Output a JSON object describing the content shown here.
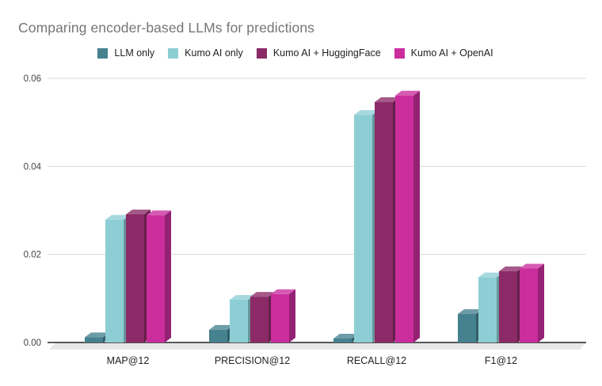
{
  "chart_data": {
    "type": "bar",
    "style": "3d-column",
    "title": "Comparing encoder-based LLMs for predictions",
    "categories": [
      "MAP@12",
      "PRECISION@12",
      "RECALL@12",
      "F1@12"
    ],
    "series": [
      {
        "name": "LLM only",
        "color": "#45818e",
        "values": [
          0.0012,
          0.0029,
          0.0009,
          0.0065
        ]
      },
      {
        "name": "Kumo AI only",
        "color": "#8dced5",
        "values": [
          0.0279,
          0.0097,
          0.0517,
          0.0148
        ]
      },
      {
        "name": "Kumo AI + HuggingFace",
        "color": "#8b2a66",
        "values": [
          0.0291,
          0.0104,
          0.0546,
          0.0162
        ]
      },
      {
        "name": "Kumo AI + OpenAI",
        "color": "#cb2d9d",
        "values": [
          0.0289,
          0.011,
          0.0561,
          0.0168
        ]
      }
    ],
    "xlabel": "",
    "ylabel": "",
    "ylim": [
      0,
      0.06
    ],
    "y_ticks": [
      0,
      0.02,
      0.04,
      0.06
    ],
    "y_tick_labels": [
      "0.00",
      "0.02",
      "0.04",
      "0.06"
    ],
    "grid": true,
    "legend_position": "top",
    "colors": {
      "title_text": "#757575",
      "legend_text": "#212121",
      "axis_tick_text": "#444444",
      "category_text": "#1f1f1f",
      "gridline": "#d9d9d9",
      "baseline": "#424242",
      "floor": "#e8e8e8",
      "background": "#ffffff"
    }
  }
}
